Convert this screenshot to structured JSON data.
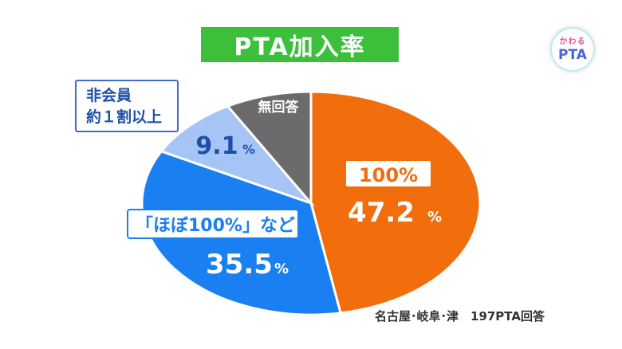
{
  "title": "PTA加入率",
  "logo": {
    "top": "かわる",
    "bottom": "PTA"
  },
  "note": {
    "line1": "非会員",
    "line2": "約１割以上"
  },
  "source": "名古屋･岐阜･津　197PTA回答",
  "chart_data": {
    "type": "pie",
    "title": "PTA加入率",
    "slices": [
      {
        "label": "100%",
        "value": 47.2,
        "display": "47.2",
        "color": "#f26e0d"
      },
      {
        "label": "「ほぼ100%」など",
        "value": 35.5,
        "display": "35.5",
        "color": "#1a7ff0"
      },
      {
        "label": "",
        "value": 9.1,
        "display": "9.1",
        "color": "#a6c4f5"
      },
      {
        "label": "無回答",
        "value": 8.2,
        "display": "",
        "color": "#6b6b6b"
      }
    ],
    "unit": "%"
  }
}
